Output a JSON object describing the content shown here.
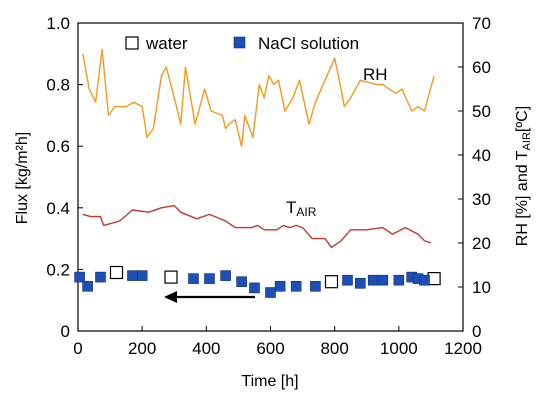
{
  "chart_data": {
    "type": "scatter",
    "title": "",
    "xlabel": "Time [h]",
    "ylabel": "Flux [kg/m²h]",
    "y2label_parts": {
      "main": "RH [%]  and T",
      "sub": "AIR",
      "unit": "[ºC]"
    },
    "xlim": [
      0,
      1200
    ],
    "ylim": [
      0,
      1.0
    ],
    "y2lim": [
      0,
      70
    ],
    "x_ticks": [
      "0",
      "200",
      "400",
      "600",
      "800",
      "1000",
      "1200"
    ],
    "y_ticks": [
      "0",
      "0.2",
      "0.4",
      "0.6",
      "0.8",
      "1.0"
    ],
    "y2_ticks": [
      "0",
      "10",
      "20",
      "30",
      "40",
      "50",
      "60",
      "70"
    ],
    "grid": false,
    "legend": {
      "position": "top-left",
      "entries": [
        "water",
        "NaCl solution"
      ]
    },
    "annotations": {
      "rh_label": "RH",
      "tair_main": "T",
      "tair_sub": "AIR"
    },
    "colors": {
      "water_edge": "#000000",
      "nacl": "#1f4fb5",
      "rh": "#f39a1e",
      "tair": "#c0392b",
      "arrow": "#000000"
    },
    "series": [
      {
        "name": "water",
        "axis": "left",
        "marker": "square-open",
        "x": [
          120,
          290,
          790,
          1110
        ],
        "y": [
          0.19,
          0.175,
          0.16,
          0.17
        ]
      },
      {
        "name": "NaCl solution",
        "axis": "left",
        "marker": "square-filled",
        "x": [
          5,
          30,
          70,
          170,
          200,
          360,
          410,
          460,
          510,
          550,
          600,
          630,
          680,
          740,
          840,
          880,
          920,
          950,
          1000,
          1040,
          1060,
          1080
        ],
        "y": [
          0.175,
          0.145,
          0.175,
          0.18,
          0.18,
          0.17,
          0.17,
          0.18,
          0.16,
          0.14,
          0.125,
          0.145,
          0.145,
          0.145,
          0.165,
          0.155,
          0.165,
          0.165,
          0.165,
          0.175,
          0.17,
          0.165
        ]
      },
      {
        "axis": "right",
        "marker": "line",
        "x": [
          15,
          35,
          55,
          75,
          95,
          115,
          150,
          175,
          200,
          215,
          235,
          260,
          275,
          300,
          320,
          335,
          365,
          395,
          415,
          450,
          460,
          470,
          490,
          510,
          520,
          545,
          565,
          580,
          595,
          610,
          625,
          645,
          670,
          690,
          720,
          740,
          770,
          800,
          820,
          830,
          850,
          880,
          930,
          950,
          990,
          1010,
          1040,
          1060,
          1080,
          1110
        ],
        "y": [
          63,
          55,
          52,
          64,
          49,
          51,
          51,
          52,
          51,
          44,
          46,
          58,
          60,
          53,
          47,
          60,
          47,
          55,
          50,
          49,
          46,
          47,
          48,
          42,
          49,
          44,
          56,
          53,
          58,
          56,
          57,
          50,
          53,
          57,
          47,
          52,
          57,
          62,
          55,
          51,
          53,
          57,
          56,
          56,
          54,
          55,
          50,
          51,
          50,
          58
        ]
      },
      {
        "axis": "right",
        "marker": "line",
        "x": [
          15,
          40,
          70,
          80,
          130,
          170,
          220,
          260,
          300,
          320,
          370,
          410,
          460,
          490,
          510,
          540,
          560,
          580,
          620,
          640,
          660,
          680,
          700,
          730,
          770,
          790,
          820,
          850,
          900,
          950,
          980,
          1020,
          1060,
          1080,
          1100
        ],
        "y": [
          26.5,
          26,
          26,
          24,
          25,
          27.5,
          27,
          28,
          28.5,
          27,
          25.5,
          26.5,
          25,
          23.5,
          23.5,
          23.5,
          24,
          23,
          23,
          24,
          23.5,
          24,
          23.5,
          21,
          21,
          19,
          20.5,
          23,
          23,
          23.5,
          22,
          23.5,
          22,
          20.5,
          20
        ]
      }
    ]
  }
}
